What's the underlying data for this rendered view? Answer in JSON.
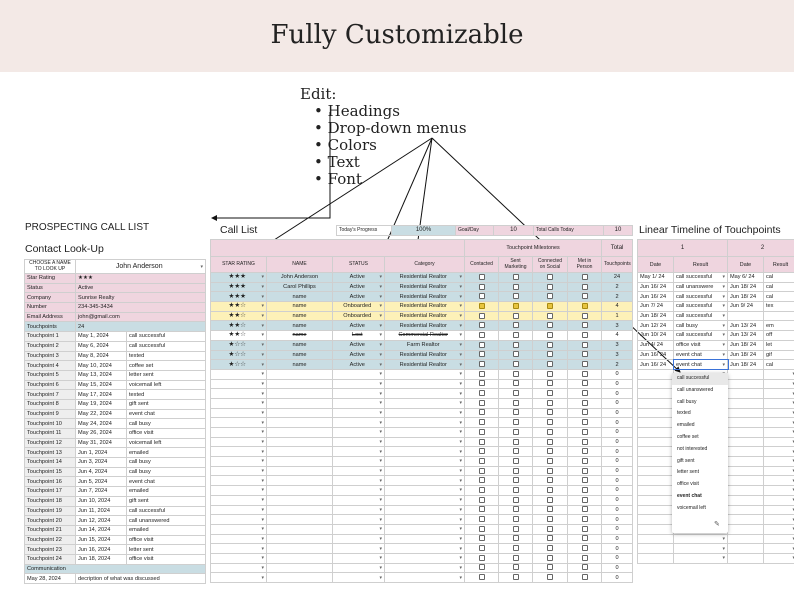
{
  "banner": {
    "title": "Fully Customizable"
  },
  "edit_note": {
    "heading": "Edit:",
    "items": [
      "Headings",
      "Drop-down menus",
      "Colors",
      "Text",
      "Font"
    ]
  },
  "left_panel": {
    "title": "PROSPECTING CALL LIST",
    "subtitle": "Contact Look-Up",
    "lookup_label": "CHOOSE A NAME TO LOOK UP",
    "lookup_value": "John Anderson",
    "fields": [
      {
        "label": "Star Rating",
        "value": "★★★"
      },
      {
        "label": "Status",
        "value": "Active"
      },
      {
        "label": "Company",
        "value": "Sunrise Realty"
      },
      {
        "label": "Number",
        "value": "234-345-3434"
      },
      {
        "label": "Email Address",
        "value": "john@gmail.com"
      }
    ],
    "touchpoints_label": "Touchpoints",
    "touchpoints_value": "24",
    "touchpoints": [
      {
        "label": "Touchpoint 1",
        "date": "May 1, 2024",
        "result": "call successful"
      },
      {
        "label": "Touchpoint 2",
        "date": "May 6, 2024",
        "result": "call successful"
      },
      {
        "label": "Touchpoint 3",
        "date": "May 8, 2024",
        "result": "texted"
      },
      {
        "label": "Touchpoint 4",
        "date": "May 10, 2024",
        "result": "coffee set"
      },
      {
        "label": "Touchpoint 5",
        "date": "May 13, 2024",
        "result": "letter sent"
      },
      {
        "label": "Touchpoint 6",
        "date": "May 15, 2024",
        "result": "voicemail left"
      },
      {
        "label": "Touchpoint 7",
        "date": "May 17, 2024",
        "result": "texted"
      },
      {
        "label": "Touchpoint 8",
        "date": "May 19, 2024",
        "result": "gift sent"
      },
      {
        "label": "Touchpoint 9",
        "date": "May 22, 2024",
        "result": "event chat"
      },
      {
        "label": "Touchpoint 10",
        "date": "May 24, 2024",
        "result": "call busy"
      },
      {
        "label": "Touchpoint 11",
        "date": "May 26, 2024",
        "result": "office visit"
      },
      {
        "label": "Touchpoint 12",
        "date": "May 31, 2024",
        "result": "voicemail left"
      },
      {
        "label": "Touchpoint 13",
        "date": "Jun 1, 2024",
        "result": "emailed"
      },
      {
        "label": "Touchpoint 14",
        "date": "Jun 3, 2024",
        "result": "call busy"
      },
      {
        "label": "Touchpoint 15",
        "date": "Jun 4, 2024",
        "result": "call busy"
      },
      {
        "label": "Touchpoint 16",
        "date": "Jun 5, 2024",
        "result": "event chat"
      },
      {
        "label": "Touchpoint 17",
        "date": "Jun 7, 2024",
        "result": "emailed"
      },
      {
        "label": "Touchpoint 18",
        "date": "Jun 10, 2024",
        "result": "gift sent"
      },
      {
        "label": "Touchpoint 19",
        "date": "Jun 11, 2024",
        "result": "call successful"
      },
      {
        "label": "Touchpoint 20",
        "date": "Jun 12, 2024",
        "result": "call unanswered"
      },
      {
        "label": "Touchpoint 21",
        "date": "Jun 14, 2024",
        "result": "emailed"
      },
      {
        "label": "Touchpoint 22",
        "date": "Jun 15, 2024",
        "result": "office visit"
      },
      {
        "label": "Touchpoint 23",
        "date": "Jun 16, 2024",
        "result": "letter sent"
      },
      {
        "label": "Touchpoint 24",
        "date": "Jun 18, 2024",
        "result": "office visit"
      }
    ],
    "communication_label": "Communication",
    "communication_date": "May 28, 2024",
    "communication_text": "decription of what was discussed"
  },
  "call_list": {
    "title": "Call List",
    "todays_progress_label": "Today's Progress",
    "todays_progress_value": "100%",
    "goal_label": "Goal/Day",
    "goal_value": "10",
    "total_calls_label": "Total Calls Today",
    "total_calls_value": "10",
    "milestones_label": "Touchpoint Milestones",
    "total_label": "Total",
    "headers": [
      "STAR RATING",
      "NAME",
      "STATUS",
      "Category",
      "Contacted",
      "Sent Marketing",
      "Connected on Social",
      "Met in Person",
      "Touchpoints"
    ],
    "rows": [
      {
        "stars": "★★★",
        "name": "John Anderson",
        "status": "Active",
        "category": "Residential Realtor",
        "checks": [
          false,
          false,
          false,
          false
        ],
        "total": "24",
        "color": "blue"
      },
      {
        "stars": "★★★",
        "name": "Carol Phillips",
        "status": "Active",
        "category": "Residential Realtor",
        "checks": [
          false,
          false,
          false,
          false
        ],
        "total": "2",
        "color": "blue"
      },
      {
        "stars": "★★★",
        "name": "name",
        "status": "Active",
        "category": "Residential Realtor",
        "checks": [
          false,
          false,
          false,
          false
        ],
        "total": "2",
        "color": "blue"
      },
      {
        "stars": "★★☆",
        "name": "name",
        "status": "Onboarded",
        "category": "Residential Realtor",
        "checks": [
          true,
          true,
          true,
          true
        ],
        "total": "4",
        "color": "yellow"
      },
      {
        "stars": "★★☆",
        "name": "name",
        "status": "Onboarded",
        "category": "Residential Realtor",
        "checks": [
          false,
          false,
          false,
          false
        ],
        "total": "1",
        "color": "yellow"
      },
      {
        "stars": "★★☆",
        "name": "name",
        "status": "Active",
        "category": "Residential Realtor",
        "checks": [
          false,
          false,
          false,
          false
        ],
        "total": "3",
        "color": "blue"
      },
      {
        "stars": "★★☆",
        "name": "name",
        "status": "Lost",
        "category": "Commercial Realtor",
        "checks": [
          false,
          false,
          false,
          false
        ],
        "total": "4",
        "color": "white",
        "strike": true
      },
      {
        "stars": "★☆☆",
        "name": "name",
        "status": "Active",
        "category": "Farm Realtor",
        "checks": [
          false,
          false,
          false,
          false
        ],
        "total": "3",
        "color": "blue"
      },
      {
        "stars": "★☆☆",
        "name": "name",
        "status": "Active",
        "category": "Residential Realtor",
        "checks": [
          false,
          false,
          false,
          false
        ],
        "total": "3",
        "color": "blue"
      },
      {
        "stars": "★☆☆",
        "name": "name",
        "status": "Active",
        "category": "Residential Realtor",
        "checks": [
          false,
          false,
          false,
          false
        ],
        "total": "2",
        "color": "blue"
      }
    ],
    "empty_total": "0"
  },
  "timeline": {
    "title": "Linear Timeline of Touchpoints",
    "col1_num": "1",
    "col2_num": "2",
    "date_header": "Date",
    "result_header": "Result",
    "rows": [
      {
        "date": "May 1/ 24",
        "result": "call successful",
        "date2": "May 6/ 24",
        "result2": "cal"
      },
      {
        "date": "Jun 16/ 24",
        "result": "call unanswere",
        "date2": "Jun 18/ 24",
        "result2": "cal"
      },
      {
        "date": "Jun 16/ 24",
        "result": "call successful",
        "date2": "Jun 18/ 24",
        "result2": "cal"
      },
      {
        "date": "Jun 7/ 24",
        "result": "call successful",
        "date2": "Jun 9/ 24",
        "result2": "tex"
      },
      {
        "date": "Jun 18/ 24",
        "result": "call successful",
        "date2": "",
        "result2": ""
      },
      {
        "date": "Jun 12/ 24",
        "result": "call busy",
        "date2": "Jun 13/ 24",
        "result2": "em"
      },
      {
        "date": "Jun 10/ 24",
        "result": "call successful",
        "date2": "Jun 13/ 24",
        "result2": "off"
      },
      {
        "date": "Jun 4/ 24",
        "result": "office visit",
        "date2": "Jun 18/ 24",
        "result2": "let"
      },
      {
        "date": "Jun 16/ 24",
        "result": "event chat",
        "date2": "Jun 18/ 24",
        "result2": "gif"
      },
      {
        "date": "Jun 16/ 24",
        "result": "event chat",
        "date2": "Jun 18/ 24",
        "result2": "cal"
      }
    ],
    "menu_items": [
      "call successful",
      "call unanswered",
      "call busy",
      "texted",
      "emailed",
      "coffee set",
      "not interested",
      "gift sent",
      "letter sent",
      "office visit",
      "event chat",
      "voicemail left"
    ]
  }
}
